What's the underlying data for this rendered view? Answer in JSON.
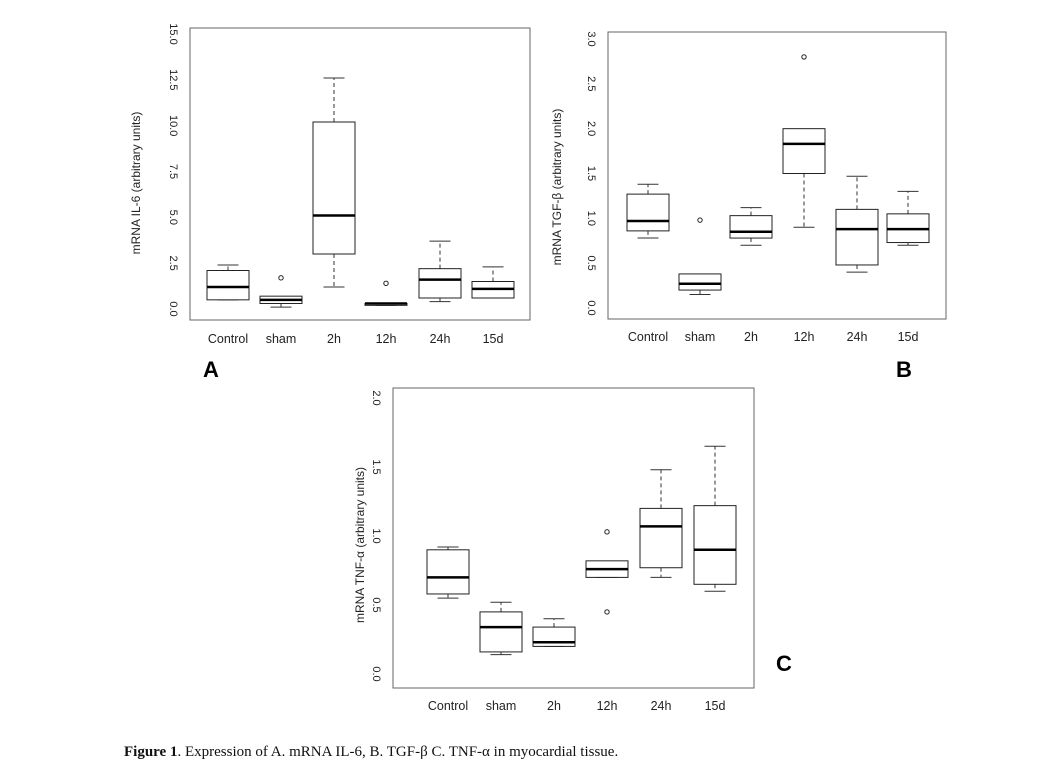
{
  "caption": {
    "label": "Figure 1",
    "text": ". Expression of A. mRNA IL-6, B. TGF-β C. TNF-α in myocardial tissue."
  },
  "colors": {
    "box": "#222222",
    "median": "#000000",
    "whisker": "#333333",
    "frame": "#666666"
  },
  "chart_data": [
    {
      "type": "boxplot",
      "panel_label": "A",
      "ylabel": "mRNA IL-6 (arbitrary units)",
      "categories": [
        "Control",
        "sham",
        "2h",
        "12h",
        "24h",
        "15d"
      ],
      "ylim": [
        0,
        15
      ],
      "yticks": [
        0,
        2.5,
        5,
        7.5,
        10,
        12.5,
        15
      ],
      "ytick_labels": [
        "0.0",
        "2.5",
        "5.0",
        "7.5",
        "10.0",
        "12.5",
        "15.0"
      ],
      "boxes": [
        {
          "whisker_low": 0.5,
          "q1": 0.5,
          "median": 1.2,
          "q3": 2.1,
          "whisker_high": 2.4,
          "outliers": []
        },
        {
          "whisker_low": 0.1,
          "q1": 0.3,
          "median": 0.5,
          "q3": 0.7,
          "whisker_high": 0.7,
          "outliers": [
            1.7
          ]
        },
        {
          "whisker_low": 1.2,
          "q1": 3.0,
          "median": 5.1,
          "q3": 10.2,
          "whisker_high": 12.6,
          "outliers": []
        },
        {
          "whisker_low": 0.2,
          "q1": 0.2,
          "median": 0.3,
          "q3": 0.3,
          "whisker_high": 0.3,
          "outliers": [
            1.4
          ]
        },
        {
          "whisker_low": 0.4,
          "q1": 0.6,
          "median": 1.6,
          "q3": 2.2,
          "whisker_high": 3.7,
          "outliers": []
        },
        {
          "whisker_low": 0.6,
          "q1": 0.6,
          "median": 1.1,
          "q3": 1.5,
          "whisker_high": 2.3,
          "outliers": []
        }
      ]
    },
    {
      "type": "boxplot",
      "panel_label": "B",
      "ylabel": "mRNA TGF-β (arbitrary units)",
      "categories": [
        "Control",
        "sham",
        "2h",
        "12h",
        "24h",
        "15d"
      ],
      "ylim": [
        0,
        3
      ],
      "yticks": [
        0,
        0.5,
        1,
        1.5,
        2,
        2.5,
        3
      ],
      "ytick_labels": [
        "0.0",
        "0.5",
        "1.0",
        "1.5",
        "2.0",
        "2.5",
        "3.0"
      ],
      "boxes": [
        {
          "whisker_low": 0.78,
          "q1": 0.86,
          "median": 0.97,
          "q3": 1.27,
          "whisker_high": 1.38,
          "outliers": []
        },
        {
          "whisker_low": 0.15,
          "q1": 0.2,
          "median": 0.27,
          "q3": 0.38,
          "whisker_high": 0.38,
          "outliers": [
            0.98
          ]
        },
        {
          "whisker_low": 0.7,
          "q1": 0.78,
          "median": 0.85,
          "q3": 1.03,
          "whisker_high": 1.12,
          "outliers": []
        },
        {
          "whisker_low": 0.9,
          "q1": 1.5,
          "median": 1.83,
          "q3": 2.0,
          "whisker_high": 2.0,
          "outliers": [
            2.8
          ]
        },
        {
          "whisker_low": 0.4,
          "q1": 0.48,
          "median": 0.88,
          "q3": 1.1,
          "whisker_high": 1.47,
          "outliers": []
        },
        {
          "whisker_low": 0.7,
          "q1": 0.73,
          "median": 0.88,
          "q3": 1.05,
          "whisker_high": 1.3,
          "outliers": []
        }
      ]
    },
    {
      "type": "boxplot",
      "panel_label": "C",
      "ylabel": "mRNA TNF-α (arbitrary units)",
      "categories": [
        "Control",
        "sham",
        "2h",
        "12h",
        "24h",
        "15d"
      ],
      "ylim": [
        0,
        2
      ],
      "yticks": [
        0,
        0.5,
        1,
        1.5,
        2
      ],
      "ytick_labels": [
        "0.0",
        "0.5",
        "1.0",
        "1.5",
        "2.0"
      ],
      "boxes": [
        {
          "whisker_low": 0.55,
          "q1": 0.58,
          "median": 0.7,
          "q3": 0.9,
          "whisker_high": 0.92,
          "outliers": []
        },
        {
          "whisker_low": 0.14,
          "q1": 0.16,
          "median": 0.34,
          "q3": 0.45,
          "whisker_high": 0.52,
          "outliers": []
        },
        {
          "whisker_low": 0.2,
          "q1": 0.2,
          "median": 0.23,
          "q3": 0.34,
          "whisker_high": 0.4,
          "outliers": []
        },
        {
          "whisker_low": 0.7,
          "q1": 0.7,
          "median": 0.76,
          "q3": 0.82,
          "whisker_high": 0.82,
          "outliers": [
            1.03,
            0.45
          ]
        },
        {
          "whisker_low": 0.7,
          "q1": 0.77,
          "median": 1.07,
          "q3": 1.2,
          "whisker_high": 1.48,
          "outliers": []
        },
        {
          "whisker_low": 0.6,
          "q1": 0.65,
          "median": 0.9,
          "q3": 1.22,
          "whisker_high": 1.65,
          "outliers": []
        }
      ]
    }
  ]
}
